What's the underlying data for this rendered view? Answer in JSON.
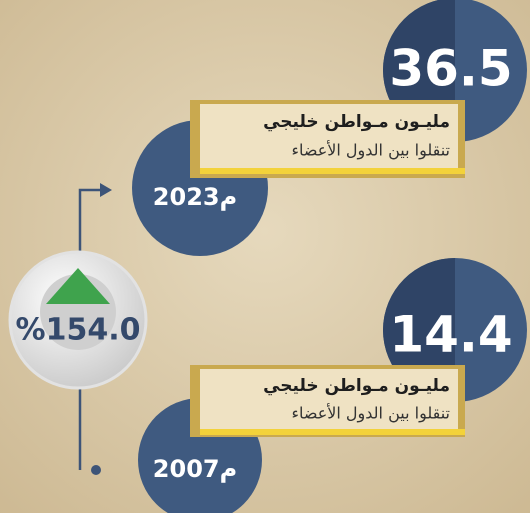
{
  "items": [
    {
      "value": "36.5",
      "title": "مليـون مـواطن خليجي",
      "subtitle": "تنقلوا بين الدول الأعضاء",
      "year": "2023م"
    },
    {
      "value": "14.4",
      "title": "مليـون مـواطن خليجي",
      "subtitle": "تنقلوا بين الدول الأعضاء",
      "year": "2007م"
    }
  ],
  "change": "%154.0"
}
